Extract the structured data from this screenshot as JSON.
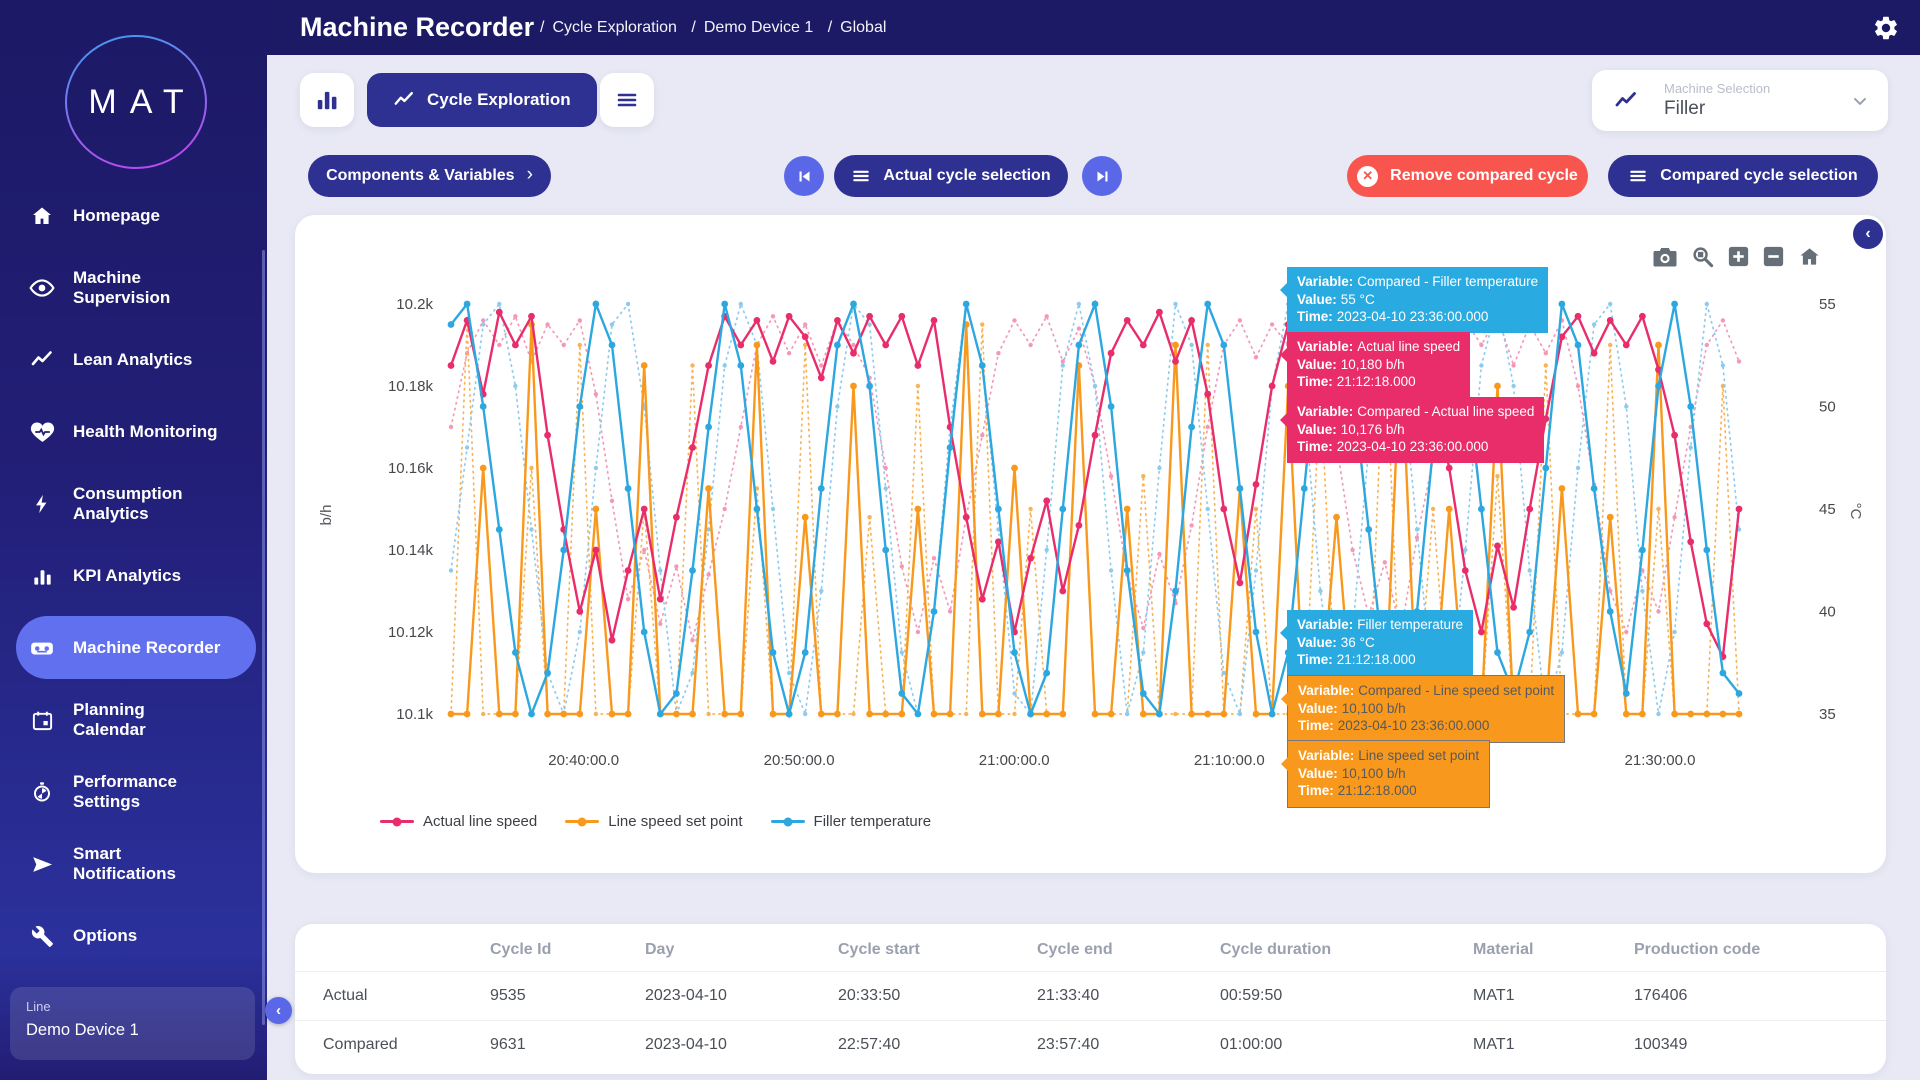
{
  "app": {
    "brand": "MAT"
  },
  "header": {
    "title": "Machine Recorder",
    "sep": "/",
    "breadcrumbs": [
      "Cycle Exploration",
      "Demo Device 1",
      "Global"
    ]
  },
  "sidebar": {
    "items": [
      {
        "label": "Homepage",
        "icon": "home"
      },
      {
        "label": "Machine Supervision",
        "icon": "eye"
      },
      {
        "label": "Lean Analytics",
        "icon": "trend"
      },
      {
        "label": "Health Monitoring",
        "icon": "heart"
      },
      {
        "label": "Consumption Analytics",
        "icon": "bolt"
      },
      {
        "label": "KPI Analytics",
        "icon": "bar-chart"
      },
      {
        "label": "Machine Recorder",
        "icon": "recorder",
        "active": true
      },
      {
        "label": "Planning Calendar",
        "icon": "calendar"
      },
      {
        "label": "Performance Settings",
        "icon": "stopwatch"
      },
      {
        "label": "Smart Notifications",
        "icon": "send"
      },
      {
        "label": "Options",
        "icon": "wrench"
      }
    ],
    "line_card": {
      "label": "Line",
      "value": "Demo Device 1"
    }
  },
  "toolbar": {
    "active_tab": "Cycle Exploration",
    "machine_selection": {
      "label": "Machine Selection",
      "value": "Filler"
    }
  },
  "controls": {
    "components_btn": "Components & Variables",
    "components_chevron": "›",
    "actual_btn": "Actual cycle selection",
    "remove_btn": "Remove compared cycle",
    "compared_btn": "Compared cycle selection"
  },
  "colors": {
    "navy": "#1c1965",
    "button_blue": "#2e3191",
    "periwinkle": "#5a68e8",
    "active_item": "#6170ef",
    "red": "#f8554f",
    "content_bg": "#e8e9f4",
    "tooltip_blue": "#29abe2",
    "tooltip_pink": "#e82d6a",
    "tooltip_orange": "#f8991d"
  },
  "chart_card": {
    "tooltip_labels": {
      "variable": "Variable:",
      "value": "Value:",
      "time": "Time:"
    },
    "tooltips": [
      {
        "variable": "Compared - Filler temperature",
        "value": "55 °C",
        "time": "2023-04-10 23:36:00.000",
        "type": "blue"
      },
      {
        "variable": "Actual line speed",
        "value": "10,180 b/h",
        "time": "21:12:18.000",
        "type": "pink"
      },
      {
        "variable": "Compared - Actual line speed",
        "value": "10,176 b/h",
        "time": "2023-04-10 23:36:00.000",
        "type": "pink"
      },
      {
        "variable": "Filler temperature",
        "value": "36 °C",
        "time": "21:12:18.000",
        "type": "blue"
      },
      {
        "variable": "Compared - Line speed set point",
        "value": "10,100 b/h",
        "time": "2023-04-10 23:36:00.000",
        "type": "orange"
      },
      {
        "variable": "Line speed set point",
        "value": "10,100 b/h",
        "time": "21:12:18.000",
        "type": "orange"
      }
    ],
    "modebar": [
      "camera",
      "zoom-box",
      "zoom-in",
      "zoom-out",
      "home"
    ]
  },
  "chart_data": {
    "type": "line",
    "x_axis": {
      "ticks": [
        {
          "label": "20:40:00.0",
          "t": 0.103
        },
        {
          "label": "20:50:00.0",
          "t": 0.2703
        },
        {
          "label": "21:00:00.0",
          "t": 0.4373
        },
        {
          "label": "21:10:00.0",
          "t": 0.6043
        },
        {
          "label": "21:20:00.0",
          "t": 0.7713
        },
        {
          "label": "21:30:00.0",
          "t": 0.9387
        }
      ]
    },
    "y_left": {
      "label": "b/h",
      "range": [
        10100,
        10200
      ],
      "ticks": [
        {
          "label": "10.2k",
          "value": 10200
        },
        {
          "label": "10.18k",
          "value": 10180
        },
        {
          "label": "10.16k",
          "value": 10160
        },
        {
          "label": "10.14k",
          "value": 10140
        },
        {
          "label": "10.12k",
          "value": 10120
        },
        {
          "label": "10.1k",
          "value": 10100
        }
      ]
    },
    "y_right": {
      "label": "°C",
      "range": [
        35,
        55
      ],
      "ticks": [
        {
          "label": "55",
          "value": 55
        },
        {
          "label": "50",
          "value": 50
        },
        {
          "label": "45",
          "value": 45
        },
        {
          "label": "40",
          "value": 40
        },
        {
          "label": "35",
          "value": 35
        }
      ]
    },
    "legend": [
      {
        "label": "Actual line speed",
        "color": "#e82d6a"
      },
      {
        "label": "Line speed set point",
        "color": "#f8991d"
      },
      {
        "label": "Filler temperature",
        "color": "#2da7e0"
      }
    ],
    "series": [
      {
        "name": "Compared - Actual line speed",
        "color": "#f398b6",
        "axis": "left",
        "style": "dotted",
        "values": [
          10170,
          10188,
          10196,
          10190,
          10197,
          10186,
          10195,
          10190,
          10196,
          10178,
          10152,
          10128,
          10140,
          10122,
          10136,
          10118,
          10134,
          10150,
          10170,
          10190,
          10197,
          10188,
          10195,
          10185,
          10196,
          10190,
          10182,
          10160,
          10136,
          10120,
          10138,
          10125,
          10148,
          10168,
          10188,
          10196,
          10190,
          10197,
          10186,
          10194,
          10180,
          10158,
          10134,
          10121,
          10139,
          10127,
          10146,
          10170,
          10190,
          10196,
          10187,
          10195,
          10190,
          10196,
          10184,
          10166,
          10140,
          10124,
          10137,
          10120,
          10143,
          10162,
          10184,
          10196,
          10190,
          10197,
          10185,
          10195,
          10188,
          10196,
          10180,
          10156,
          10130,
          10120,
          10135,
          10125,
          10148,
          10170,
          10190,
          10196,
          10186
        ]
      },
      {
        "name": "Compared - Line speed set point",
        "color": "#f9b254",
        "axis": "left",
        "style": "dotted",
        "values": [
          10100,
          10195,
          10100,
          10100,
          10100,
          10160,
          10100,
          10100,
          10190,
          10100,
          10100,
          10100,
          10150,
          10100,
          10100,
          10185,
          10100,
          10100,
          10100,
          10155,
          10100,
          10100,
          10190,
          10100,
          10100,
          10100,
          10148,
          10100,
          10100,
          10180,
          10100,
          10100,
          10100,
          10195,
          10100,
          10100,
          10150,
          10100,
          10100,
          10185,
          10100,
          10100,
          10100,
          10158,
          10100,
          10100,
          10100,
          10190,
          10100,
          10100,
          10150,
          10100,
          10100,
          10100,
          10180,
          10100,
          10100,
          10100,
          10195,
          10100,
          10100,
          10150,
          10100,
          10100,
          10100,
          10158,
          10100,
          10100,
          10185,
          10100,
          10100,
          10100,
          10190,
          10100,
          10100,
          10150,
          10100,
          10100,
          10100,
          10180,
          10100
        ]
      },
      {
        "name": "Compared - Filler temperature",
        "color": "#8ccbf0",
        "axis": "right",
        "style": "dotted",
        "values": [
          42,
          48,
          54,
          55,
          51,
          44,
          37,
          35,
          39,
          47,
          54,
          55,
          50,
          42,
          35,
          37,
          44,
          52,
          55,
          53,
          45,
          37,
          35,
          41,
          50,
          55,
          54,
          46,
          38,
          35,
          40,
          49,
          55,
          52,
          44,
          36,
          35,
          43,
          52,
          55,
          51,
          42,
          35,
          38,
          47,
          55,
          53,
          45,
          37,
          35,
          42,
          51,
          55,
          50,
          41,
          35,
          39,
          48,
          55,
          52,
          44,
          36,
          35,
          43,
          52,
          55,
          51,
          42,
          35,
          38,
          47,
          54,
          55,
          50,
          41,
          35,
          39,
          48,
          55,
          52,
          44
        ]
      },
      {
        "name": "Line speed set point",
        "color": "#f8991d",
        "axis": "left",
        "style": "solid",
        "values": [
          10100,
          10100,
          10160,
          10100,
          10100,
          10195,
          10100,
          10100,
          10100,
          10150,
          10100,
          10100,
          10185,
          10100,
          10100,
          10100,
          10155,
          10100,
          10100,
          10190,
          10100,
          10100,
          10148,
          10100,
          10100,
          10180,
          10100,
          10100,
          10100,
          10150,
          10100,
          10100,
          10195,
          10100,
          10100,
          10160,
          10100,
          10100,
          10100,
          10185,
          10100,
          10100,
          10150,
          10100,
          10100,
          10190,
          10100,
          10100,
          10100,
          10155,
          10100,
          10100,
          10180,
          10100,
          10100,
          10148,
          10100,
          10100,
          10100,
          10190,
          10100,
          10100,
          10150,
          10100,
          10100,
          10180,
          10100,
          10100,
          10100,
          10155,
          10100,
          10100,
          10148,
          10100,
          10100,
          10190,
          10100,
          10100,
          10100,
          10100,
          10100
        ]
      },
      {
        "name": "Actual line speed",
        "color": "#e82d6a",
        "axis": "left",
        "style": "solid",
        "values": [
          10185,
          10196,
          10178,
          10198,
          10190,
          10197,
          10168,
          10145,
          10125,
          10140,
          10118,
          10135,
          10150,
          10128,
          10148,
          10165,
          10185,
          10197,
          10190,
          10196,
          10186,
          10197,
          10192,
          10182,
          10196,
          10188,
          10197,
          10190,
          10197,
          10185,
          10196,
          10170,
          10148,
          10128,
          10142,
          10120,
          10138,
          10152,
          10130,
          10146,
          10168,
          10188,
          10196,
          10190,
          10198,
          10186,
          10196,
          10178,
          10150,
          10132,
          10156,
          10180,
          10195,
          10188,
          10197,
          10190,
          10198,
          10184,
          10196,
          10189,
          10197,
          10180,
          10160,
          10135,
          10120,
          10141,
          10126,
          10150,
          10172,
          10192,
          10197,
          10188,
          10196,
          10190,
          10197,
          10184,
          10168,
          10142,
          10122,
          10114,
          10150
        ]
      },
      {
        "name": "Filler temperature",
        "color": "#2da7e0",
        "axis": "right",
        "style": "solid",
        "values": [
          54,
          55,
          50,
          44,
          38,
          35,
          37,
          43,
          50,
          55,
          53,
          46,
          39,
          35,
          36,
          42,
          49,
          55,
          52,
          45,
          38,
          35,
          38,
          46,
          53,
          55,
          51,
          43,
          36,
          35,
          40,
          48,
          55,
          52,
          45,
          38,
          35,
          37,
          45,
          53,
          55,
          50,
          42,
          36,
          35,
          41,
          49,
          55,
          53,
          46,
          39,
          35,
          38,
          46,
          54,
          55,
          51,
          44,
          37,
          35,
          40,
          48,
          55,
          52,
          45,
          38,
          36,
          39,
          47,
          55,
          53,
          46,
          40,
          36,
          43,
          51,
          55,
          50,
          43,
          37,
          36
        ]
      }
    ]
  },
  "table": {
    "headers": [
      "",
      "Cycle Id",
      "Day",
      "Cycle start",
      "Cycle end",
      "Cycle duration",
      "Material",
      "Production code"
    ],
    "rows": [
      {
        "name": "Actual",
        "cells": [
          "9535",
          "2023-04-10",
          "20:33:50",
          "21:33:40",
          "00:59:50",
          "MAT1",
          "176406"
        ]
      },
      {
        "name": "Compared",
        "cells": [
          "9631",
          "2023-04-10",
          "22:57:40",
          "23:57:40",
          "01:00:00",
          "MAT1",
          "100349"
        ]
      }
    ]
  }
}
